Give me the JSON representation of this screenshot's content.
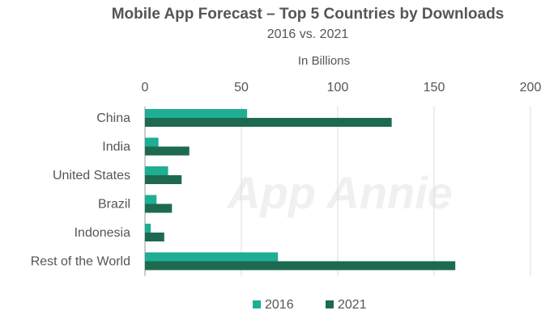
{
  "chart_data": {
    "type": "bar",
    "orientation": "horizontal",
    "title": "Mobile App Forecast – Top 5 Countries by Downloads",
    "subtitle": "2016 vs. 2021",
    "axis_title": "In Billions",
    "categories": [
      "China",
      "India",
      "United States",
      "Brazil",
      "Indonesia",
      "Rest of the World"
    ],
    "series": [
      {
        "name": "2016",
        "color": "#1fae93",
        "values": [
          53,
          7,
          12,
          6,
          3,
          69
        ]
      },
      {
        "name": "2021",
        "color": "#1d6a50",
        "values": [
          128,
          23,
          19,
          14,
          10,
          161
        ]
      }
    ],
    "xlim": [
      0,
      200
    ],
    "xticks": [
      0,
      50,
      100,
      150,
      200
    ],
    "grid": true,
    "legend_position": "bottom",
    "watermark": "App Annie"
  }
}
